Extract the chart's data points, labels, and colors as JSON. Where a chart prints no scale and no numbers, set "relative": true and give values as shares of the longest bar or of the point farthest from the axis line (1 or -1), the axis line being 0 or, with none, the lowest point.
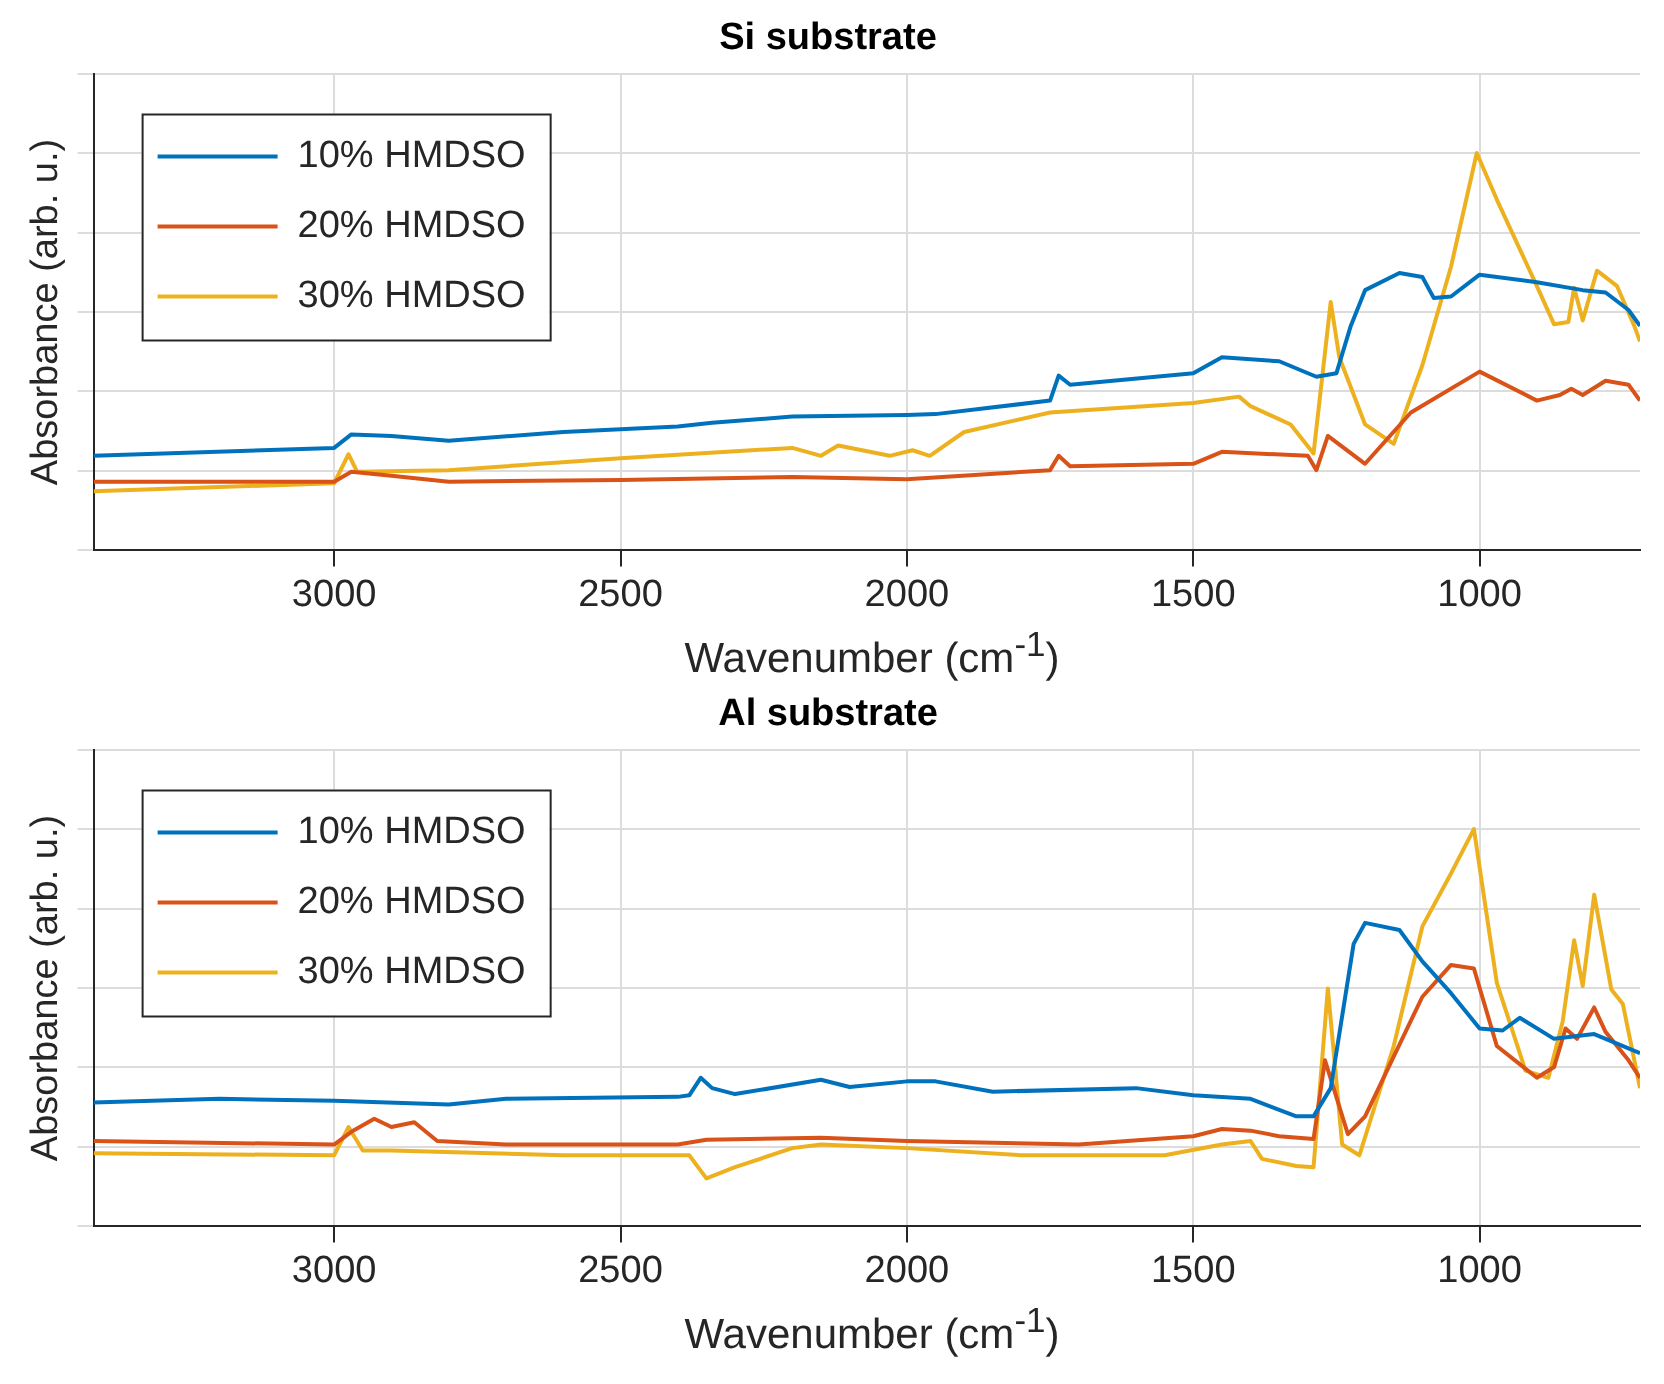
{
  "chart_data": [
    {
      "type": "line",
      "title": "Si substrate",
      "xlabel": "Wavenumber (cm$^{-1}$)",
      "ylabel": "Absorbance (arb. u.)",
      "relative": true,
      "tick_labels": "x",
      "grid": true,
      "legend": "top left",
      "xlim": [
        3420,
        720
      ],
      "xticks": [
        3000,
        2500,
        2000,
        1500,
        1000
      ],
      "series": [
        {
          "name": "10% HMDSO",
          "color": "#0072bd",
          "x": [
            3420,
            3000,
            2970,
            2900,
            2800,
            2600,
            2400,
            2340,
            2200,
            2000,
            1950,
            1750,
            1735,
            1715,
            1500,
            1450,
            1350,
            1285,
            1250,
            1225,
            1200,
            1140,
            1100,
            1080,
            1050,
            1000,
            900,
            820,
            780,
            740,
            720
          ],
          "values": [
            0.238,
            0.258,
            0.292,
            0.288,
            0.276,
            0.298,
            0.312,
            0.321,
            0.337,
            0.341,
            0.343,
            0.377,
            0.44,
            0.417,
            0.446,
            0.486,
            0.476,
            0.437,
            0.446,
            0.565,
            0.655,
            0.698,
            0.688,
            0.635,
            0.639,
            0.694,
            0.675,
            0.655,
            0.649,
            0.605,
            0.565
          ]
        },
        {
          "name": "20% HMDSO",
          "color": "#d95319",
          "x": [
            3420,
            3000,
            2970,
            2900,
            2800,
            2500,
            2200,
            2000,
            1750,
            1735,
            1715,
            1500,
            1450,
            1300,
            1285,
            1265,
            1200,
            1120,
            1000,
            900,
            860,
            840,
            820,
            780,
            740,
            720
          ],
          "values": [
            0.173,
            0.173,
            0.198,
            0.188,
            0.173,
            0.177,
            0.185,
            0.179,
            0.202,
            0.238,
            0.212,
            0.218,
            0.248,
            0.238,
            0.202,
            0.288,
            0.218,
            0.347,
            0.45,
            0.377,
            0.391,
            0.407,
            0.391,
            0.427,
            0.417,
            0.377
          ]
        },
        {
          "name": "30% HMDSO",
          "color": "#edb120",
          "x": [
            3420,
            3000,
            2975,
            2960,
            2800,
            2500,
            2200,
            2150,
            2120,
            2030,
            1990,
            1960,
            1900,
            1750,
            1500,
            1420,
            1400,
            1330,
            1290,
            1260,
            1245,
            1200,
            1150,
            1100,
            1050,
            1005,
            970,
            900,
            870,
            845,
            835,
            820,
            795,
            760,
            730,
            720
          ],
          "values": [
            0.149,
            0.169,
            0.242,
            0.198,
            0.202,
            0.232,
            0.258,
            0.238,
            0.264,
            0.238,
            0.252,
            0.238,
            0.298,
            0.347,
            0.371,
            0.387,
            0.363,
            0.317,
            0.244,
            0.625,
            0.486,
            0.317,
            0.268,
            0.466,
            0.714,
            1.0,
            0.883,
            0.665,
            0.569,
            0.575,
            0.661,
            0.579,
            0.704,
            0.665,
            0.565,
            0.526
          ]
        }
      ]
    },
    {
      "type": "line",
      "title": "Al substrate",
      "xlabel": "Wavenumber (cm$^{-1}$)",
      "ylabel": "Absorbance (arb. u.)",
      "relative": true,
      "tick_labels": "x",
      "grid": true,
      "legend": "top left",
      "xlim": [
        3420,
        720
      ],
      "xticks": [
        3000,
        2500,
        2000,
        1500,
        1000
      ],
      "series": [
        {
          "name": "10% HMDSO",
          "color": "#0072bd",
          "x": [
            3420,
            3200,
            3000,
            2800,
            2700,
            2400,
            2380,
            2360,
            2340,
            2300,
            2150,
            2100,
            2000,
            1950,
            1850,
            1600,
            1500,
            1400,
            1320,
            1290,
            1260,
            1220,
            1200,
            1140,
            1100,
            1050,
            1000,
            960,
            930,
            870,
            800,
            720
          ],
          "values": [
            0.312,
            0.321,
            0.316,
            0.307,
            0.321,
            0.326,
            0.33,
            0.374,
            0.348,
            0.333,
            0.369,
            0.351,
            0.365,
            0.365,
            0.339,
            0.348,
            0.33,
            0.321,
            0.277,
            0.277,
            0.348,
            0.711,
            0.764,
            0.746,
            0.667,
            0.587,
            0.498,
            0.493,
            0.525,
            0.472,
            0.484,
            0.436
          ]
        },
        {
          "name": "20% HMDSO",
          "color": "#d95319",
          "x": [
            3420,
            3000,
            2970,
            2930,
            2900,
            2860,
            2820,
            2700,
            2400,
            2350,
            2150,
            2000,
            1700,
            1500,
            1450,
            1400,
            1350,
            1290,
            1270,
            1230,
            1200,
            1100,
            1050,
            1010,
            970,
            900,
            870,
            850,
            830,
            800,
            780,
            740,
            720
          ],
          "values": [
            0.215,
            0.206,
            0.238,
            0.271,
            0.25,
            0.262,
            0.215,
            0.206,
            0.206,
            0.218,
            0.223,
            0.215,
            0.206,
            0.227,
            0.245,
            0.241,
            0.227,
            0.22,
            0.418,
            0.232,
            0.277,
            0.578,
            0.658,
            0.649,
            0.454,
            0.374,
            0.401,
            0.498,
            0.472,
            0.551,
            0.489,
            0.418,
            0.374
          ]
        },
        {
          "name": "30% HMDSO",
          "color": "#edb120",
          "x": [
            3420,
            3000,
            2975,
            2950,
            2900,
            2600,
            2380,
            2350,
            2300,
            2200,
            2150,
            2000,
            1800,
            1550,
            1450,
            1400,
            1380,
            1320,
            1290,
            1265,
            1240,
            1210,
            1150,
            1100,
            1050,
            1010,
            970,
            920,
            880,
            855,
            835,
            820,
            800,
            770,
            750,
            720
          ],
          "values": [
            0.184,
            0.179,
            0.25,
            0.191,
            0.191,
            0.179,
            0.179,
            0.121,
            0.149,
            0.197,
            0.206,
            0.197,
            0.179,
            0.179,
            0.206,
            0.215,
            0.17,
            0.152,
            0.149,
            0.599,
            0.206,
            0.179,
            0.454,
            0.755,
            0.888,
            1.0,
            0.613,
            0.392,
            0.374,
            0.516,
            0.72,
            0.605,
            0.835,
            0.596,
            0.56,
            0.348
          ]
        }
      ]
    }
  ]
}
